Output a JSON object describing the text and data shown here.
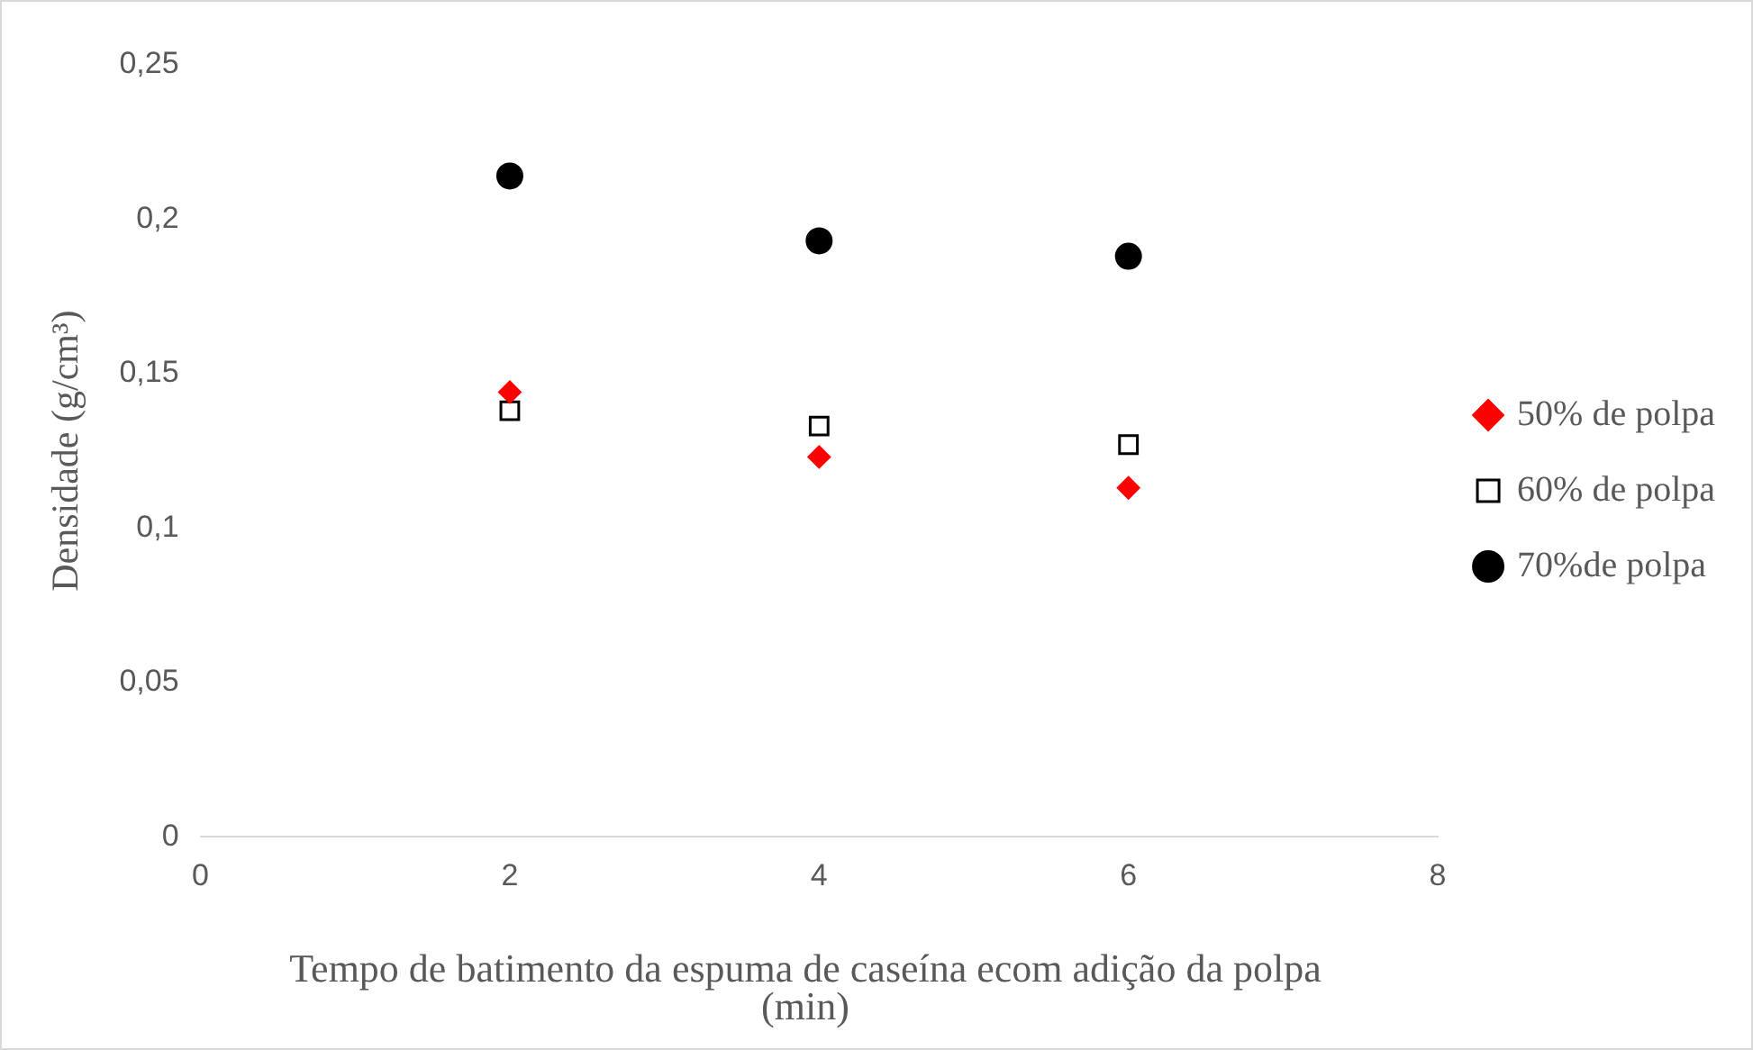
{
  "chart_data": {
    "type": "scatter",
    "xlabel": "Tempo de batimento da espuma de caseína ecom adição da  polpa (min)",
    "ylabel": "Densidade (g/cm³)",
    "x": [
      2,
      4,
      6
    ],
    "series": [
      {
        "name": "50% de polpa",
        "color": "#ff0000",
        "marker": "diamond",
        "values": [
          0.144,
          0.123,
          0.113
        ]
      },
      {
        "name": "60% de polpa",
        "color": "#000000",
        "marker": "square",
        "values": [
          0.138,
          0.133,
          0.127
        ]
      },
      {
        "name": "70%de polpa",
        "color": "#000000",
        "marker": "circle",
        "values": [
          0.214,
          0.193,
          0.188
        ]
      }
    ],
    "xlim": [
      0,
      8
    ],
    "xticks": [
      0,
      2,
      4,
      6,
      8
    ],
    "ylim": [
      0,
      0.25
    ],
    "yticks": [
      {
        "value": 0,
        "label": "0"
      },
      {
        "value": 0.05,
        "label": "0,05"
      },
      {
        "value": 0.1,
        "label": "0,1"
      },
      {
        "value": 0.15,
        "label": "0,15"
      },
      {
        "value": 0.2,
        "label": "0,2"
      },
      {
        "value": 0.25,
        "label": "0,25"
      }
    ],
    "legend": "right"
  }
}
